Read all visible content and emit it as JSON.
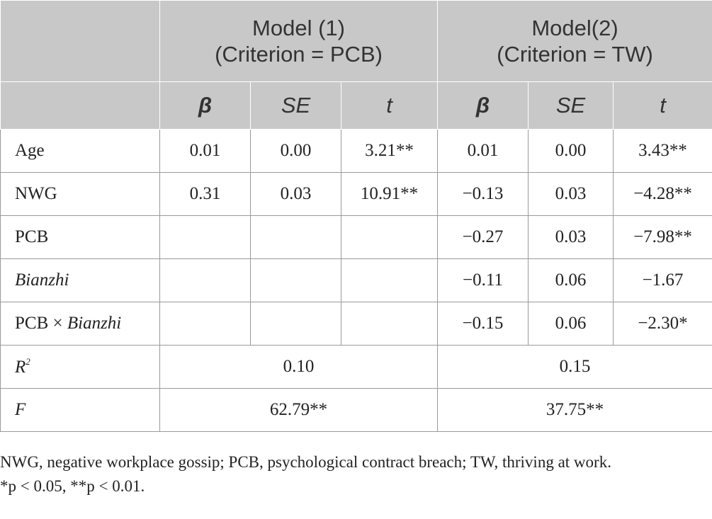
{
  "header": {
    "model1_line1": "Model (1)",
    "model1_line2": "(Criterion = PCB)",
    "model2_line1": "Model(2)",
    "model2_line2": "(Criterion = TW)",
    "sub": [
      "β",
      "SE",
      "t",
      "β",
      "SE",
      "t"
    ]
  },
  "rows": [
    {
      "label": "Age",
      "m1": [
        "0.01",
        "0.00",
        "3.21**"
      ],
      "m2": [
        "0.01",
        "0.00",
        "3.43**"
      ]
    },
    {
      "label": "NWG",
      "m1": [
        "0.31",
        "0.03",
        "10.91**"
      ],
      "m2": [
        "−0.13",
        "0.03",
        "−4.28**"
      ]
    },
    {
      "label": "PCB",
      "m1": [
        "",
        "",
        ""
      ],
      "m2": [
        "−0.27",
        "0.03",
        "−7.98**"
      ]
    },
    {
      "label": "Bianzhi",
      "m1": [
        "",
        "",
        ""
      ],
      "m2": [
        "−0.11",
        "0.06",
        "−1.67"
      ]
    },
    {
      "label_a": "PCB × ",
      "label_b": "Bianzhi",
      "m1": [
        "",
        "",
        ""
      ],
      "m2": [
        "−0.15",
        "0.06",
        "−2.30*"
      ]
    }
  ],
  "r2": {
    "label": "R",
    "sup": "2",
    "m1": "0.10",
    "m2": "0.15"
  },
  "f": {
    "label": "F",
    "m1": "62.79**",
    "m2": "37.75**"
  },
  "notes": [
    "NWG, negative workplace gossip; PCB, psychological contract breach; TW, thriving at work.",
    "*p < 0.05, **p < 0.01."
  ]
}
